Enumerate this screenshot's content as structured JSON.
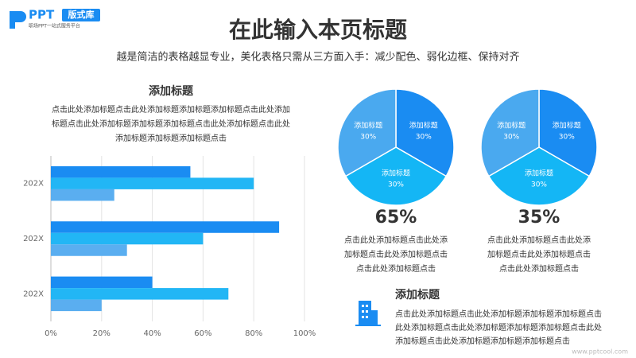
{
  "header": {
    "logo": "PPT",
    "logo_tag": "版式库",
    "logo_sub": "职场PPT一站式服务平台",
    "title": "在此输入本页标题",
    "subtitle": "越是简洁的表格越显专业，美化表格只需从三方面入手：减少配色、弱化边框、保持对齐"
  },
  "chart_data": [
    {
      "type": "bar",
      "orientation": "horizontal",
      "title": "添加标题",
      "subtitle_lines": [
        "点击此处添加标题点击此处添加标题添加标题添加标题点击此处添加",
        "标题点击此处添加标题添加标题添加标题点击此处添加标题点击此处",
        "添加标题添加标题添加标题点击"
      ],
      "categories": [
        "202X",
        "202X",
        "202X"
      ],
      "series": [
        {
          "color": "#1a8cf2",
          "values": [
            55,
            90,
            40
          ]
        },
        {
          "color": "#22b6f5",
          "values": [
            80,
            60,
            70
          ]
        },
        {
          "color": "#5aaef0",
          "values": [
            25,
            30,
            20
          ]
        }
      ],
      "xlim": [
        0,
        100
      ],
      "xticks": [
        {
          "value": 0,
          "label": "0%"
        },
        {
          "value": 20,
          "label": "20%"
        },
        {
          "value": 40,
          "label": "40%"
        },
        {
          "value": 60,
          "label": "60%"
        },
        {
          "value": 80,
          "label": "80%"
        },
        {
          "value": 100,
          "label": "100%"
        }
      ],
      "grid": true
    },
    {
      "type": "pie",
      "categories": [
        "添加标题",
        "添加标题",
        "添加标题"
      ],
      "values": [
        30,
        30,
        30
      ],
      "value_labels": [
        "30%",
        "30%",
        "30%"
      ],
      "colors": [
        "#1a8cf2",
        "#14b6f5",
        "#4aa9ef"
      ],
      "total_label": "65%",
      "caption_lines": [
        "点击此处添加标题点击此处添",
        "加标题点击此处添加标题点击",
        "点击此处添加标题点击"
      ]
    },
    {
      "type": "pie",
      "categories": [
        "添加标题",
        "添加标题",
        "添加标题"
      ],
      "values": [
        30,
        30,
        30
      ],
      "value_labels": [
        "30%",
        "30%",
        "30%"
      ],
      "colors": [
        "#1a8cf2",
        "#14b6f5",
        "#4aa9ef"
      ],
      "total_label": "35%",
      "caption_lines": [
        "点击此处添加标题点击此处添",
        "加标题点击此处添加标题点击",
        "点击此处添加标题点击"
      ]
    }
  ],
  "note": {
    "title": "添加标题",
    "lines": [
      "点击此处添加标题点击此处添加标题添加标题添加标题点击",
      "此处添加标题点击此处添加标题添加标题添加标题点击此处",
      "添加标题点击此处添加标题添加标题添加标题点击"
    ]
  },
  "watermark": "www.pptcool.com"
}
